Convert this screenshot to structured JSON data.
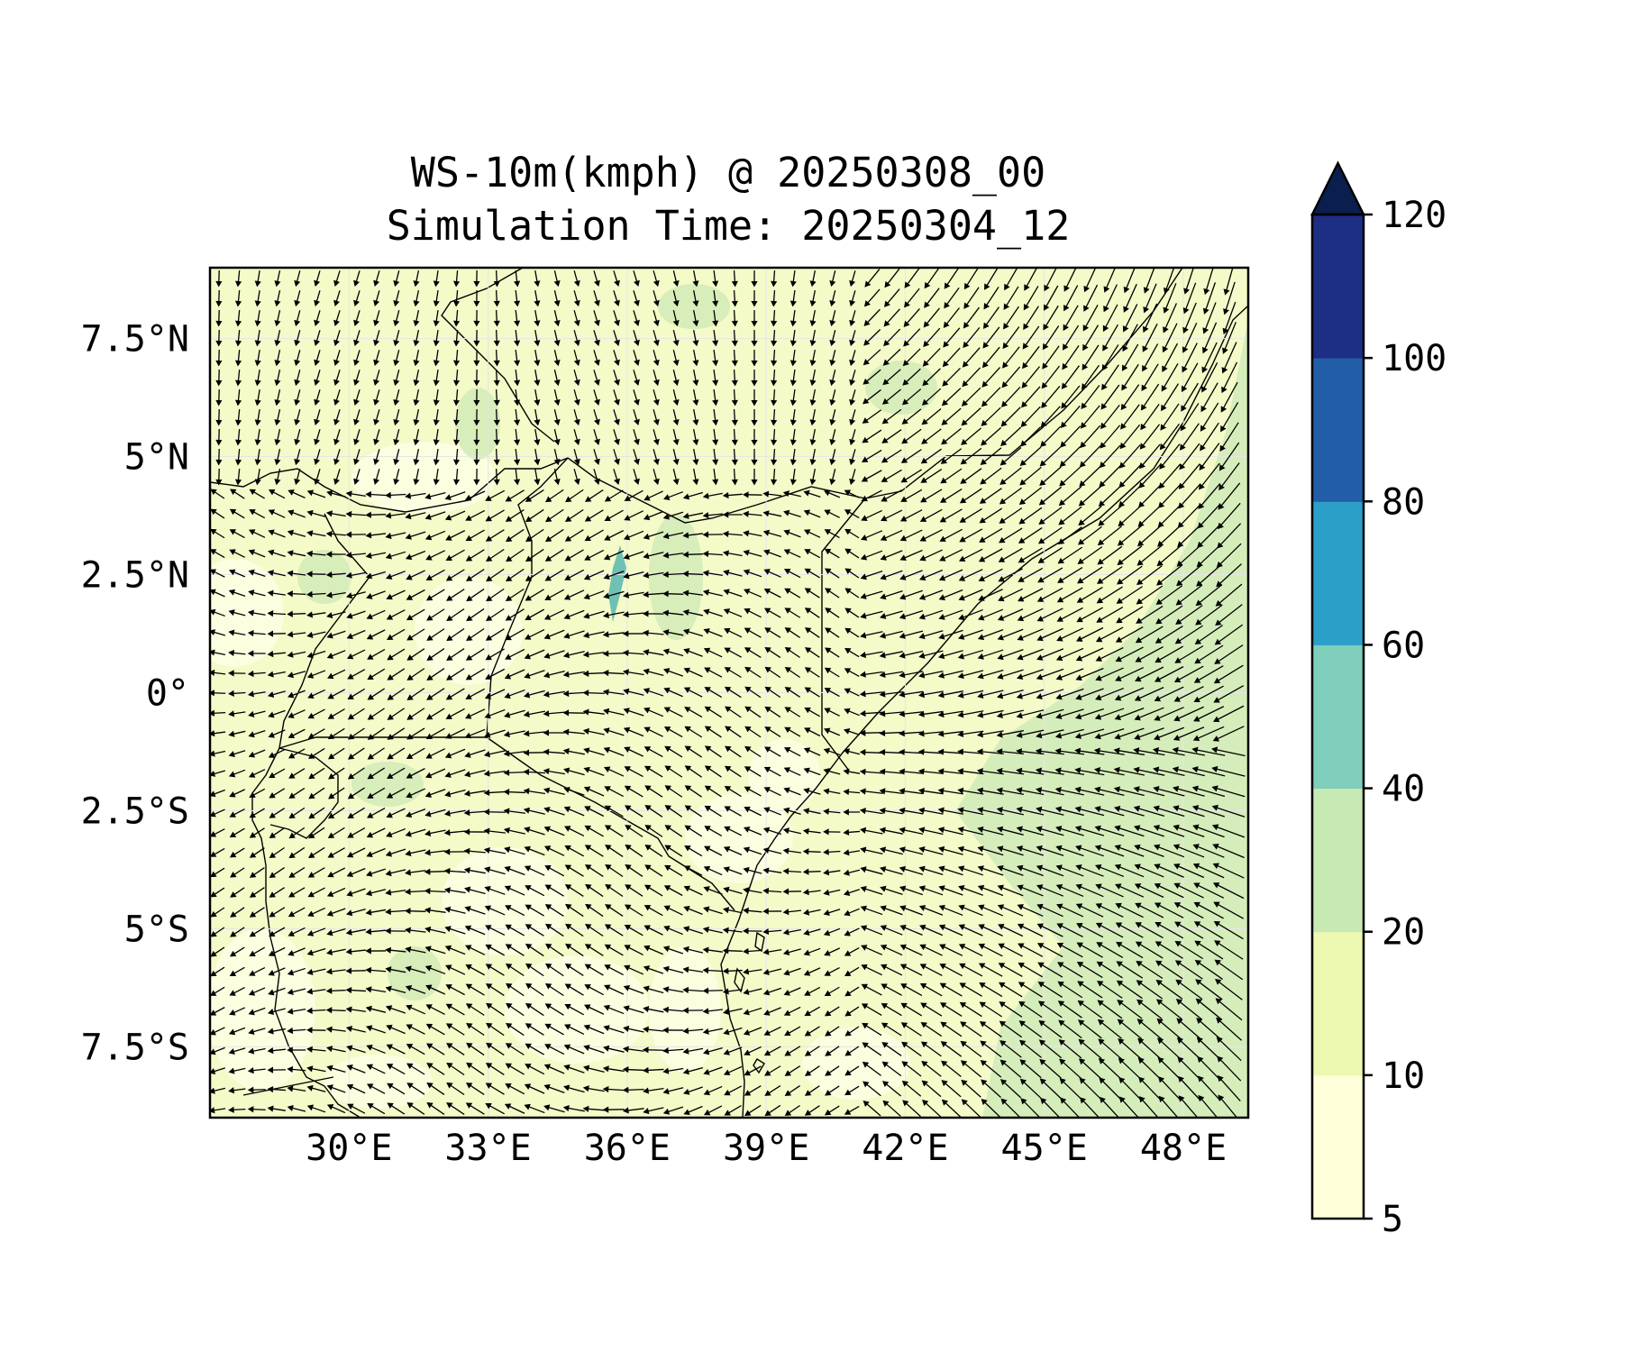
{
  "title": {
    "line1": "WS-10m(kmph) @ 20250308_00",
    "line2": "Simulation Time: 20250304_12"
  },
  "map": {
    "lon_range": [
      27,
      49.4
    ],
    "lat_range": [
      -9,
      9
    ],
    "lon_ticks": [
      {
        "value": 30,
        "label": "30°E"
      },
      {
        "value": 33,
        "label": "33°E"
      },
      {
        "value": 36,
        "label": "36°E"
      },
      {
        "value": 39,
        "label": "39°E"
      },
      {
        "value": 42,
        "label": "42°E"
      },
      {
        "value": 45,
        "label": "45°E"
      },
      {
        "value": 48,
        "label": "48°E"
      }
    ],
    "lat_ticks": [
      {
        "value": 7.5,
        "label": "7.5°N"
      },
      {
        "value": 5,
        "label": "5°N"
      },
      {
        "value": 2.5,
        "label": "2.5°N"
      },
      {
        "value": 0,
        "label": "0°"
      },
      {
        "value": -2.5,
        "label": "2.5°S"
      },
      {
        "value": -5,
        "label": "5°S"
      },
      {
        "value": -7.5,
        "label": "7.5°S"
      }
    ],
    "colors": {
      "background_field": "#f4fac8",
      "light": "#fcfee0",
      "medium": "#cfeab7",
      "frame": "#000000",
      "arrows": "#000000",
      "borders": "#000000"
    }
  },
  "colorbar": {
    "extend": "max",
    "levels": [
      {
        "value": 5,
        "label": "5",
        "color": "#ffffd9"
      },
      {
        "value": 10,
        "label": "10",
        "color": "#edf8b1"
      },
      {
        "value": 20,
        "label": "20",
        "color": "#c7e9b4"
      },
      {
        "value": 40,
        "label": "40",
        "color": "#7fcdbb"
      },
      {
        "value": 60,
        "label": "60",
        "color": "#2c9fc8"
      },
      {
        "value": 80,
        "label": "80",
        "color": "#225ea8"
      },
      {
        "value": 100,
        "label": "100",
        "color": "#1d2f84"
      },
      {
        "value": 120,
        "label": "120",
        "color": "#0b1f4e"
      }
    ]
  }
}
